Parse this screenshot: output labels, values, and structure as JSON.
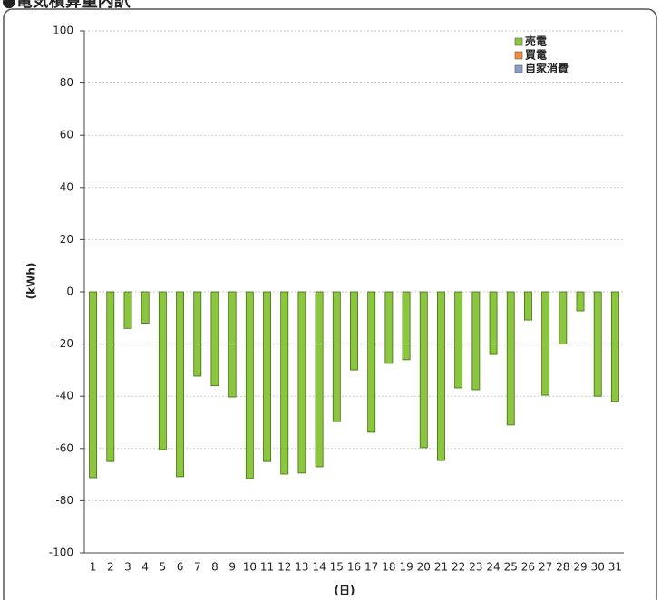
{
  "chart_data": {
    "type": "bar",
    "title": "●電気積算量内訳",
    "x_label": "(日)",
    "y_label": "(kWh)",
    "categories": [
      "1",
      "2",
      "3",
      "4",
      "5",
      "6",
      "7",
      "8",
      "9",
      "10",
      "11",
      "12",
      "13",
      "14",
      "15",
      "16",
      "17",
      "18",
      "19",
      "20",
      "21",
      "22",
      "23",
      "24",
      "25",
      "26",
      "27",
      "28",
      "29",
      "30",
      "31"
    ],
    "series": [
      {
        "name": "売電",
        "color": "#8cc63f",
        "values": [
          -71.2,
          -65,
          -14,
          -12,
          -60.4,
          -70.8,
          -32.3,
          -36,
          -40.3,
          -71.5,
          -65,
          -69.8,
          -69.4,
          -67,
          -49.7,
          -29.9,
          -53.8,
          -27.4,
          -26,
          -59.7,
          -64.6,
          -36.8,
          -37.5,
          -24,
          -51,
          -10.8,
          -39.6,
          -20,
          -7.3,
          -40,
          -42
        ]
      },
      {
        "name": "買電",
        "color": "#f08c3c",
        "values": [
          null,
          null,
          null,
          null,
          null,
          null,
          null,
          null,
          null,
          null,
          null,
          null,
          null,
          null,
          null,
          null,
          null,
          null,
          null,
          null,
          null,
          null,
          null,
          null,
          null,
          null,
          null,
          null,
          null,
          null,
          null
        ]
      },
      {
        "name": "自家消費",
        "color": "#8a9cc8",
        "values": [
          null,
          null,
          null,
          null,
          null,
          null,
          null,
          null,
          null,
          null,
          null,
          null,
          null,
          null,
          null,
          null,
          null,
          null,
          null,
          null,
          null,
          null,
          null,
          null,
          null,
          null,
          null,
          null,
          null,
          null,
          null
        ]
      }
    ],
    "ylim": [
      -100,
      100
    ],
    "yticks": [
      -100,
      -80,
      -60,
      -40,
      -20,
      0,
      20,
      40,
      60,
      80,
      100
    ],
    "grid": true,
    "legend": "top-right"
  }
}
